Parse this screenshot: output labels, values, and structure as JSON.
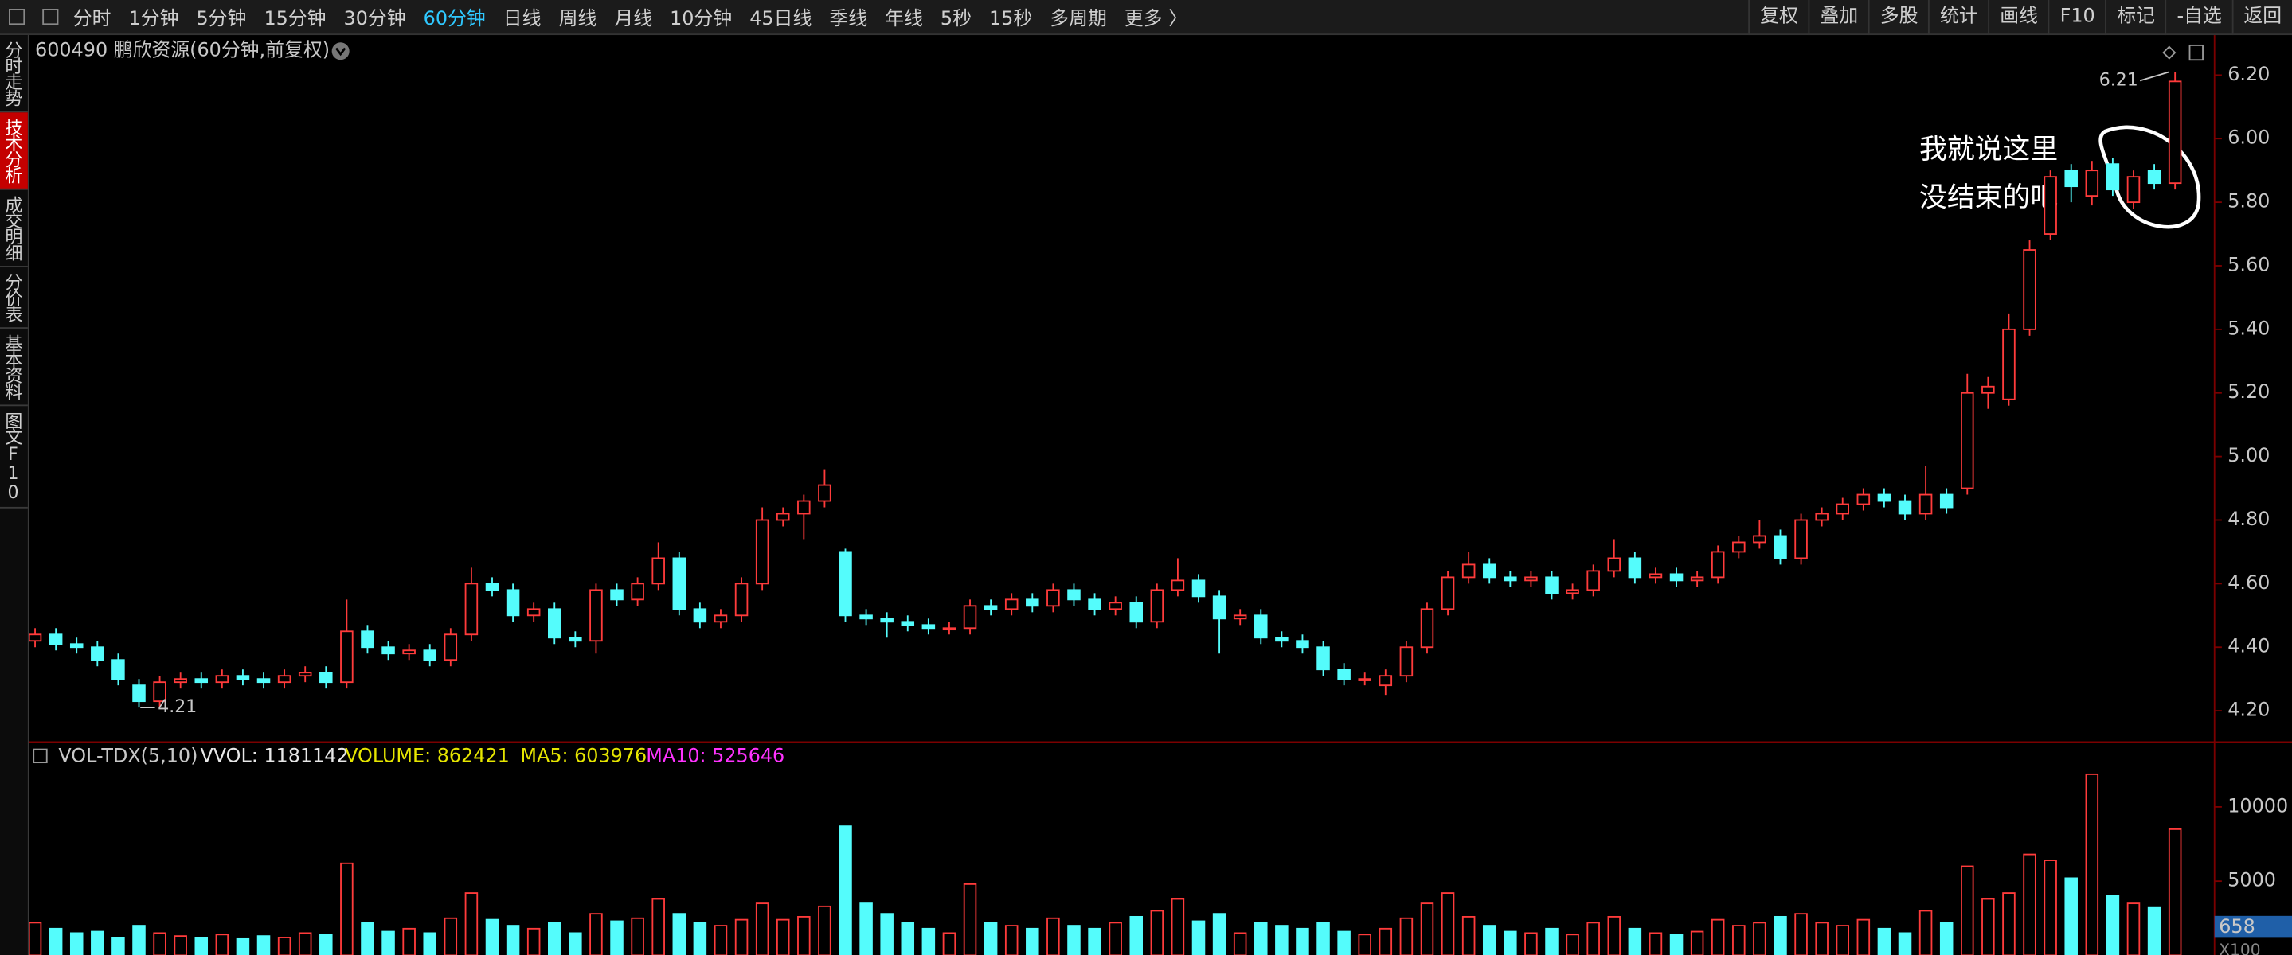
{
  "toolbar": {
    "periods": [
      "分时",
      "1分钟",
      "5分钟",
      "15分钟",
      "30分钟",
      "60分钟",
      "日线",
      "周线",
      "月线",
      "10分钟",
      "45日线",
      "季线",
      "年线",
      "5秒",
      "15秒",
      "多周期",
      "更多 〉"
    ],
    "actions": [
      "复权",
      "叠加",
      "多股",
      "统计",
      "画线",
      "F10",
      "标记",
      "-自选",
      "返回"
    ]
  },
  "sidebar": [
    "分时走势",
    "技术分析",
    "成交明细",
    "分价表",
    "基本资料",
    "图文F10"
  ],
  "annotation": {
    "lines": [
      "我就说这里",
      "没结束的吧"
    ]
  },
  "chart_data": [
    {
      "type": "candlestick",
      "title": "600490 鹏欣资源(60分钟,前复权)",
      "up_color": "#ff3b3b",
      "down_color": "#54fcfc",
      "open": [
        4.42,
        4.44,
        4.41,
        4.4,
        4.36,
        4.28,
        4.23,
        4.29,
        4.3,
        4.29,
        4.31,
        4.3,
        4.29,
        4.31,
        4.32,
        4.29,
        4.45,
        4.4,
        4.38,
        4.39,
        4.36,
        4.44,
        4.6,
        4.58,
        4.5,
        4.52,
        4.43,
        4.42,
        4.58,
        4.55,
        4.6,
        4.68,
        4.52,
        4.48,
        4.5,
        4.6,
        4.8,
        4.82,
        4.86,
        4.7,
        4.5,
        4.49,
        4.48,
        4.47,
        4.46,
        4.46,
        4.53,
        4.52,
        4.55,
        4.53,
        4.58,
        4.55,
        4.52,
        4.54,
        4.48,
        4.58,
        4.61,
        4.56,
        4.49,
        4.5,
        4.43,
        4.42,
        4.4,
        4.33,
        4.3,
        4.28,
        4.31,
        4.4,
        4.52,
        4.62,
        4.66,
        4.62,
        4.61,
        4.62,
        4.57,
        4.58,
        4.64,
        4.68,
        4.62,
        4.63,
        4.61,
        4.62,
        4.7,
        4.73,
        4.75,
        4.68,
        4.8,
        4.82,
        4.85,
        4.88,
        4.86,
        4.82,
        4.88,
        4.9,
        5.2,
        5.18,
        5.4,
        5.7,
        5.9,
        5.82,
        5.92,
        5.8,
        5.9,
        5.86
      ],
      "high": [
        4.46,
        4.46,
        4.43,
        4.42,
        4.38,
        4.3,
        4.31,
        4.32,
        4.32,
        4.33,
        4.33,
        4.32,
        4.33,
        4.34,
        4.34,
        4.55,
        4.47,
        4.42,
        4.41,
        4.41,
        4.46,
        4.65,
        4.62,
        4.6,
        4.54,
        4.54,
        4.45,
        4.6,
        4.6,
        4.62,
        4.73,
        4.7,
        4.54,
        4.52,
        4.62,
        4.84,
        4.84,
        4.88,
        4.96,
        4.71,
        4.52,
        4.51,
        4.5,
        4.49,
        4.48,
        4.55,
        4.55,
        4.57,
        4.57,
        4.6,
        4.6,
        4.57,
        4.56,
        4.56,
        4.6,
        4.68,
        4.63,
        4.58,
        4.52,
        4.52,
        4.45,
        4.44,
        4.42,
        4.35,
        4.32,
        4.33,
        4.42,
        4.54,
        4.64,
        4.7,
        4.68,
        4.64,
        4.64,
        4.64,
        4.6,
        4.66,
        4.74,
        4.7,
        4.65,
        4.65,
        4.64,
        4.72,
        4.75,
        4.8,
        4.77,
        4.82,
        4.84,
        4.87,
        4.9,
        4.9,
        4.88,
        4.97,
        4.9,
        5.26,
        5.25,
        5.45,
        5.68,
        5.9,
        5.92,
        5.93,
        5.94,
        5.9,
        5.92,
        6.21
      ],
      "low": [
        4.4,
        4.39,
        4.38,
        4.34,
        4.28,
        4.21,
        4.21,
        4.27,
        4.27,
        4.27,
        4.28,
        4.27,
        4.27,
        4.29,
        4.27,
        4.27,
        4.38,
        4.36,
        4.36,
        4.34,
        4.34,
        4.42,
        4.56,
        4.48,
        4.48,
        4.41,
        4.4,
        4.38,
        4.53,
        4.53,
        4.58,
        4.5,
        4.46,
        4.46,
        4.48,
        4.58,
        4.78,
        4.74,
        4.84,
        4.48,
        4.47,
        4.43,
        4.45,
        4.44,
        4.44,
        4.44,
        4.5,
        4.5,
        4.51,
        4.51,
        4.53,
        4.5,
        4.5,
        4.46,
        4.46,
        4.56,
        4.54,
        4.38,
        4.47,
        4.41,
        4.4,
        4.38,
        4.31,
        4.28,
        4.28,
        4.25,
        4.29,
        4.38,
        4.5,
        4.6,
        4.6,
        4.59,
        4.59,
        4.55,
        4.55,
        4.56,
        4.62,
        4.6,
        4.6,
        4.59,
        4.59,
        4.6,
        4.68,
        4.71,
        4.66,
        4.66,
        4.78,
        4.8,
        4.83,
        4.84,
        4.8,
        4.8,
        4.82,
        4.88,
        5.15,
        5.16,
        5.38,
        5.68,
        5.8,
        5.79,
        5.82,
        5.78,
        5.84,
        5.84
      ],
      "close": [
        4.44,
        4.41,
        4.4,
        4.36,
        4.3,
        4.23,
        4.29,
        4.3,
        4.29,
        4.31,
        4.3,
        4.29,
        4.31,
        4.32,
        4.29,
        4.45,
        4.4,
        4.38,
        4.39,
        4.36,
        4.44,
        4.6,
        4.58,
        4.5,
        4.52,
        4.43,
        4.42,
        4.58,
        4.55,
        4.6,
        4.68,
        4.52,
        4.48,
        4.5,
        4.6,
        4.8,
        4.82,
        4.86,
        4.91,
        4.5,
        4.49,
        4.48,
        4.47,
        4.46,
        4.46,
        4.53,
        4.52,
        4.55,
        4.53,
        4.58,
        4.55,
        4.52,
        4.54,
        4.48,
        4.58,
        4.61,
        4.56,
        4.49,
        4.5,
        4.43,
        4.42,
        4.4,
        4.33,
        4.3,
        4.3,
        4.31,
        4.4,
        4.52,
        4.62,
        4.66,
        4.62,
        4.61,
        4.62,
        4.57,
        4.58,
        4.64,
        4.68,
        4.62,
        4.63,
        4.61,
        4.62,
        4.7,
        4.73,
        4.75,
        4.68,
        4.8,
        4.82,
        4.85,
        4.88,
        4.86,
        4.82,
        4.88,
        4.84,
        5.2,
        5.22,
        5.4,
        5.65,
        5.88,
        5.85,
        5.9,
        5.84,
        5.88,
        5.86,
        6.18
      ],
      "ylim": [
        4.12,
        6.28
      ],
      "yticks": [
        {
          "value": 4.2,
          "label": "4.20"
        },
        {
          "value": 4.4,
          "label": "4.40"
        },
        {
          "value": 4.6,
          "label": "4.60"
        },
        {
          "value": 4.8,
          "label": "4.80"
        },
        {
          "value": 5.0,
          "label": "5.00"
        },
        {
          "value": 5.2,
          "label": "5.20"
        },
        {
          "value": 5.4,
          "label": "5.40"
        },
        {
          "value": 5.6,
          "label": "5.60"
        },
        {
          "value": 5.8,
          "label": "5.80"
        },
        {
          "value": 6.0,
          "label": "6.00"
        },
        {
          "value": 6.2,
          "label": "6.20"
        }
      ],
      "annotations": [
        {
          "text": "6.21",
          "value": 6.21
        },
        {
          "text": "4.21",
          "value": 4.21
        }
      ]
    },
    {
      "type": "bar",
      "title": "VOL-TDX(5,10)",
      "legend": [
        {
          "text": "VVOL: 1181142",
          "color": "#e8e8e8"
        },
        {
          "text": "VOLUME: 862421",
          "color": "#e6e600"
        },
        {
          "text": "MA5: 603976",
          "color": "#e6e600"
        },
        {
          "text": "MA10: 525646",
          "color": "#ff33ff"
        }
      ],
      "values": [
        2200,
        1800,
        1500,
        1600,
        1200,
        2000,
        1500,
        1300,
        1200,
        1400,
        1100,
        1300,
        1200,
        1500,
        1400,
        6200,
        2200,
        1600,
        1800,
        1500,
        2500,
        4200,
        2400,
        2000,
        1800,
        2200,
        1500,
        2800,
        2300,
        2500,
        3800,
        2800,
        2200,
        2000,
        2400,
        3500,
        2400,
        2600,
        3300,
        8700,
        3500,
        2800,
        2200,
        1800,
        1500,
        4800,
        2200,
        2000,
        1800,
        2500,
        2000,
        1800,
        2200,
        2600,
        3000,
        3800,
        2300,
        2800,
        1500,
        2200,
        2000,
        1800,
        2200,
        1600,
        1400,
        1800,
        2500,
        3500,
        4200,
        2600,
        2000,
        1600,
        1500,
        1800,
        1400,
        2200,
        2600,
        1800,
        1500,
        1400,
        1600,
        2400,
        2000,
        2200,
        2600,
        2800,
        2200,
        2000,
        2400,
        1800,
        1500,
        3000,
        2200,
        6000,
        3800,
        4200,
        6800,
        6400,
        5200,
        12200,
        4000,
        3500,
        3200,
        8500
      ],
      "ylim": [
        0,
        12500
      ],
      "yticks": [
        5000,
        10000
      ],
      "cursor_label": "658",
      "unit_label": "X100"
    }
  ]
}
